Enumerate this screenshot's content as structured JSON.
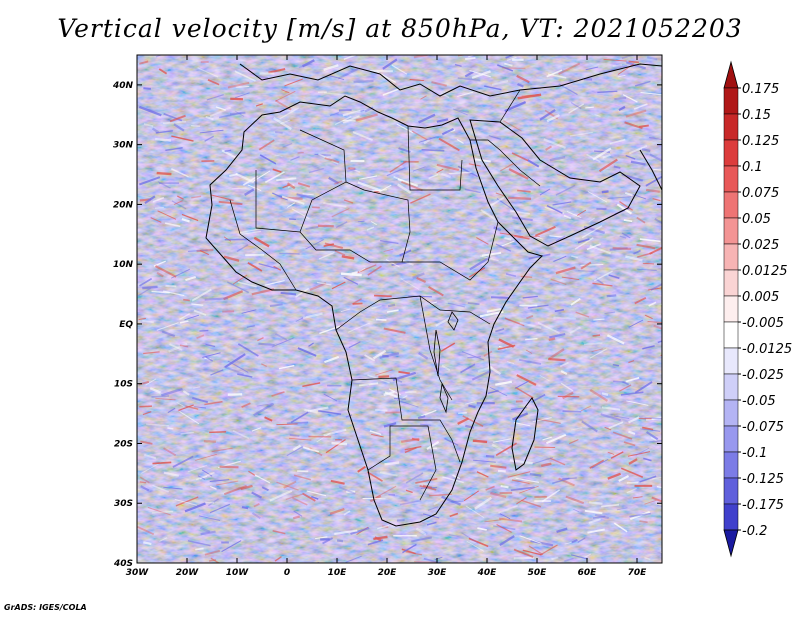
{
  "title": "Vertical velocity [m/s] at 850hPa, VT: 2021052203",
  "credit": "GrADS: IGES/COLA",
  "map": {
    "lon_range": [
      -30,
      75
    ],
    "lat_range": [
      -40,
      45
    ],
    "lon_ticks": [
      {
        "value": -30,
        "label": "30W"
      },
      {
        "value": -20,
        "label": "20W"
      },
      {
        "value": -10,
        "label": "10W"
      },
      {
        "value": 0,
        "label": "0"
      },
      {
        "value": 10,
        "label": "10E"
      },
      {
        "value": 20,
        "label": "20E"
      },
      {
        "value": 30,
        "label": "30E"
      },
      {
        "value": 40,
        "label": "40E"
      },
      {
        "value": 50,
        "label": "50E"
      },
      {
        "value": 60,
        "label": "60E"
      },
      {
        "value": 70,
        "label": "70E"
      }
    ],
    "lat_ticks": [
      {
        "value": 40,
        "label": "40N"
      },
      {
        "value": 30,
        "label": "30N"
      },
      {
        "value": 20,
        "label": "20N"
      },
      {
        "value": 10,
        "label": "10N"
      },
      {
        "value": 0,
        "label": "EQ"
      },
      {
        "value": -10,
        "label": "10S"
      },
      {
        "value": -20,
        "label": "20S"
      },
      {
        "value": -30,
        "label": "30S"
      },
      {
        "value": -40,
        "label": "40S"
      }
    ],
    "field_colors": {
      "positive": "#e0544e",
      "negative": "#6f6fe8",
      "neutral": "#ffffff",
      "coastline": "#000000"
    }
  },
  "colorbar": {
    "levels": [
      {
        "label": "0.175",
        "color": "#b01818"
      },
      {
        "label": "0.15",
        "color": "#c82828"
      },
      {
        "label": "0.125",
        "color": "#dc3c3c"
      },
      {
        "label": "0.1",
        "color": "#e85858"
      },
      {
        "label": "0.075",
        "color": "#ee7474"
      },
      {
        "label": "0.05",
        "color": "#f39494"
      },
      {
        "label": "0.025",
        "color": "#f7b4b4"
      },
      {
        "label": "0.0125",
        "color": "#fad4d4"
      },
      {
        "label": "0.005",
        "color": "#fdeeee"
      },
      {
        "label": "-0.005",
        "color": "#ffffff"
      },
      {
        "label": "-0.0125",
        "color": "#e8e8fc"
      },
      {
        "label": "-0.025",
        "color": "#cfcff8"
      },
      {
        "label": "-0.05",
        "color": "#b4b4f4"
      },
      {
        "label": "-0.075",
        "color": "#9898ee"
      },
      {
        "label": "-0.1",
        "color": "#7c7ce6"
      },
      {
        "label": "-0.125",
        "color": "#6060dc"
      },
      {
        "label": "-0.175",
        "color": "#4040cc"
      },
      {
        "label": "-0.2",
        "color": "#2424b4"
      }
    ],
    "top_arrow_color": "#a01010",
    "bottom_arrow_color": "#1a1aa0"
  }
}
